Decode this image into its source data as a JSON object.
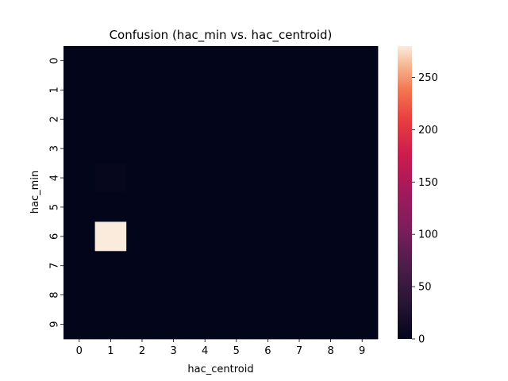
{
  "chart_data": {
    "type": "heatmap",
    "title": "Confusion (hac_min vs. hac_centroid)",
    "xlabel": "hac_centroid",
    "ylabel": "hac_min",
    "x_categories": [
      "0",
      "1",
      "2",
      "3",
      "4",
      "5",
      "6",
      "7",
      "8",
      "9"
    ],
    "y_categories": [
      "0",
      "1",
      "2",
      "3",
      "4",
      "5",
      "6",
      "7",
      "8",
      "9"
    ],
    "values": [
      [
        0,
        0,
        0,
        0,
        0,
        0,
        0,
        0,
        0,
        0
      ],
      [
        0,
        0,
        0,
        0,
        0,
        0,
        0,
        0,
        0,
        0
      ],
      [
        0,
        0,
        0,
        0,
        0,
        0,
        0,
        0,
        0,
        0
      ],
      [
        0,
        0,
        0,
        0,
        0,
        0,
        0,
        0,
        0,
        0
      ],
      [
        0,
        3,
        0,
        0,
        0,
        0,
        0,
        0,
        0,
        0
      ],
      [
        0,
        0,
        0,
        0,
        0,
        0,
        0,
        0,
        0,
        0
      ],
      [
        0,
        280,
        0,
        0,
        0,
        0,
        0,
        0,
        0,
        0
      ],
      [
        0,
        0,
        0,
        0,
        0,
        0,
        0,
        0,
        0,
        0
      ],
      [
        0,
        0,
        0,
        0,
        0,
        0,
        0,
        0,
        0,
        0
      ],
      [
        0,
        0,
        0,
        0,
        0,
        0,
        0,
        0,
        0,
        0
      ]
    ],
    "colorbar": {
      "min": 0,
      "max": 280,
      "ticks": [
        0,
        50,
        100,
        150,
        200,
        250
      ],
      "colormap": "rocket"
    }
  }
}
